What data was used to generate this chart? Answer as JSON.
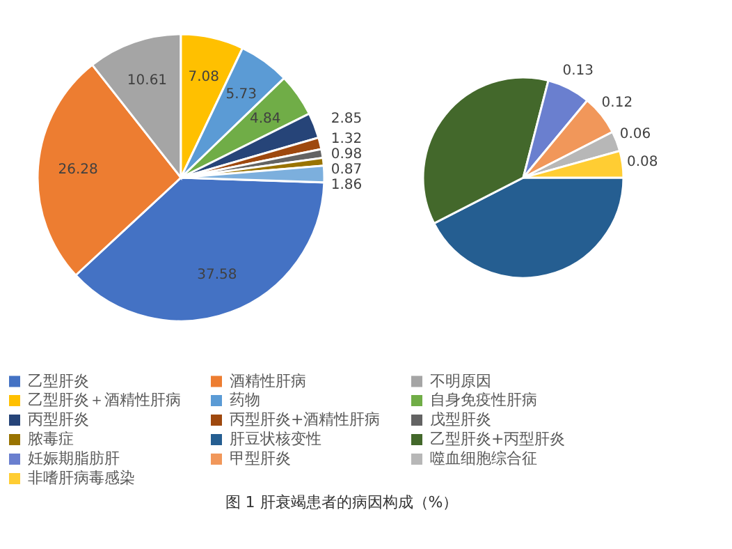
{
  "chart_data": [
    {
      "type": "pie",
      "title": "图 1 肝衰竭患者的病因构成（%）",
      "legend": "bottom",
      "data_labels": true,
      "categories": [
        "乙型肝炎",
        "酒精性肝病",
        "不明原因",
        "乙型肝炎＋酒精性肝病",
        "药物",
        "自身免疫性肝病",
        "丙型肝炎",
        "丙型肝炎+酒精性肝病",
        "戊型肝炎",
        "脓毒症",
        null
      ],
      "values": [
        37.58,
        26.28,
        10.61,
        7.08,
        5.73,
        4.84,
        2.85,
        1.32,
        0.98,
        0.87,
        1.86
      ],
      "colors": [
        "#4472c4",
        "#ed7d31",
        "#a5a5a5",
        "#ffc000",
        "#5b9bd5",
        "#70ad47",
        "#264478",
        "#9e480e",
        "#636363",
        "#997300",
        "#7cafdd"
      ]
    },
    {
      "type": "pie",
      "legend": "bottom",
      "categories": [
        "肝豆状核变性",
        "乙型肝炎+丙型肝炎",
        "妊娠期脂肪肝",
        "甲型肝炎",
        "噬血细胞综合征",
        "非嗜肝病毒感染"
      ],
      "values": [
        0.79,
        0.68,
        0.13,
        0.12,
        0.06,
        0.08
      ],
      "value_labels": [
        null,
        null,
        "0.13",
        "0.12",
        "0.06",
        "0.08"
      ],
      "colors": [
        "#255e91",
        "#43682b",
        "#6a7fcf",
        "#f1975a",
        "#b7b7b7",
        "#ffcd33"
      ]
    }
  ]
}
